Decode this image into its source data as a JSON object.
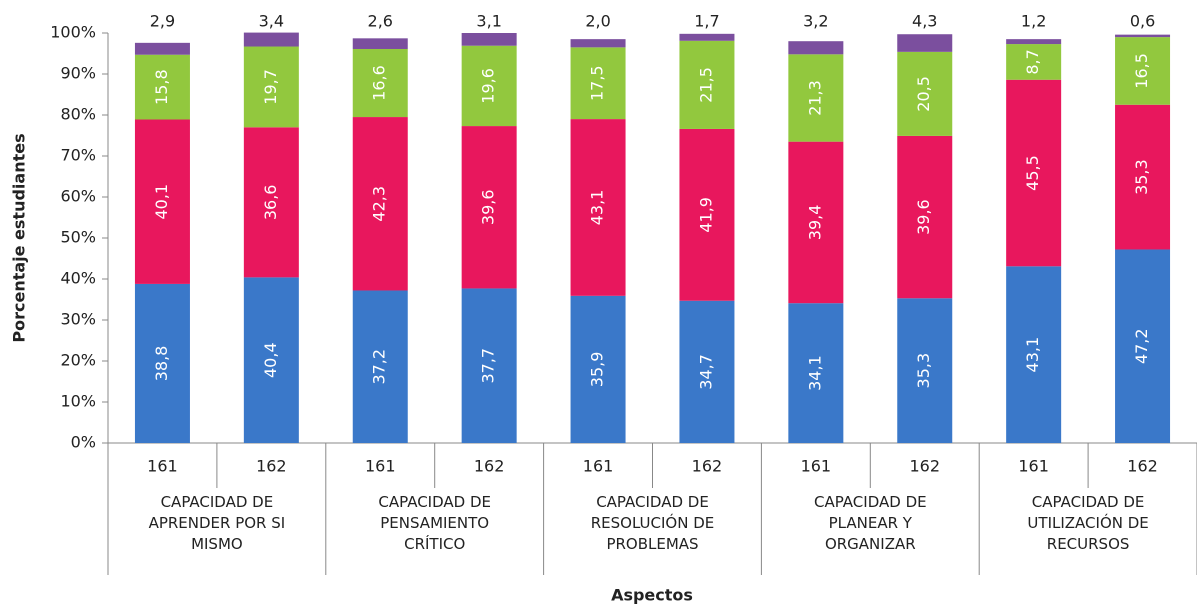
{
  "chart_data": {
    "type": "stacked_bar",
    "ylabel": "Porcentaje estudiantes",
    "xlabel": "Aspectos",
    "categories": [
      "161",
      "162",
      "161",
      "162",
      "161",
      "162",
      "161",
      "162",
      "161",
      "162"
    ],
    "groups": [
      "CAPACIDAD DE APRENDER POR SI MISMO",
      "CAPACIDAD DE PENSAMIENTO CRÍTICO",
      "CAPACIDAD DE RESOLUCIÓN DE PROBLEMAS",
      "CAPACIDAD DE PLANEAR Y ORGANIZAR",
      "CAPACIDAD DE UTILIZACIÓN DE RECURSOS"
    ],
    "series": [
      {
        "color": "#3a78c9",
        "values": [
          38.8,
          40.4,
          37.2,
          37.7,
          35.9,
          34.7,
          34.1,
          35.3,
          43.1,
          47.2
        ],
        "value_labels": [
          "38,8",
          "40,4",
          "37,2",
          "37,7",
          "35,9",
          "34,7",
          "34,1",
          "35,3",
          "43,1",
          "47,2"
        ]
      },
      {
        "color": "#e8175d",
        "values": [
          40.1,
          36.6,
          42.3,
          39.6,
          43.1,
          41.9,
          39.4,
          39.6,
          45.5,
          35.3
        ],
        "value_labels": [
          "40,1",
          "36,6",
          "42,3",
          "39,6",
          "43,1",
          "41,9",
          "39,4",
          "39,6",
          "45,5",
          "35,3"
        ]
      },
      {
        "color": "#92c83e",
        "values": [
          15.8,
          19.7,
          16.6,
          19.6,
          17.5,
          21.5,
          21.3,
          20.5,
          8.7,
          16.5
        ],
        "value_labels": [
          "15,8",
          "19,7",
          "16,6",
          "19,6",
          "17,5",
          "21,5",
          "21,3",
          "20,5",
          "8,7",
          "16,5"
        ]
      },
      {
        "color": "#7b4f9e",
        "values": [
          2.9,
          3.4,
          2.6,
          3.1,
          2.0,
          1.7,
          3.2,
          4.3,
          1.2,
          0.6
        ],
        "value_labels": [
          "2,9",
          "3,4",
          "2,6",
          "3,1",
          "2,0",
          "1,7",
          "3,2",
          "4,3",
          "1,2",
          "0,6"
        ]
      }
    ],
    "ylim": [
      0,
      100
    ],
    "yticks": [
      {
        "value": 0,
        "label": "0%"
      },
      {
        "value": 10,
        "label": "10%"
      },
      {
        "value": 20,
        "label": "20%"
      },
      {
        "value": 30,
        "label": "30%"
      },
      {
        "value": 40,
        "label": "40%"
      },
      {
        "value": 50,
        "label": "50%"
      },
      {
        "value": 60,
        "label": "60%"
      },
      {
        "value": 70,
        "label": "70%"
      },
      {
        "value": 80,
        "label": "80%"
      },
      {
        "value": 90,
        "label": "90%"
      },
      {
        "value": 100,
        "label": "100%"
      }
    ]
  }
}
